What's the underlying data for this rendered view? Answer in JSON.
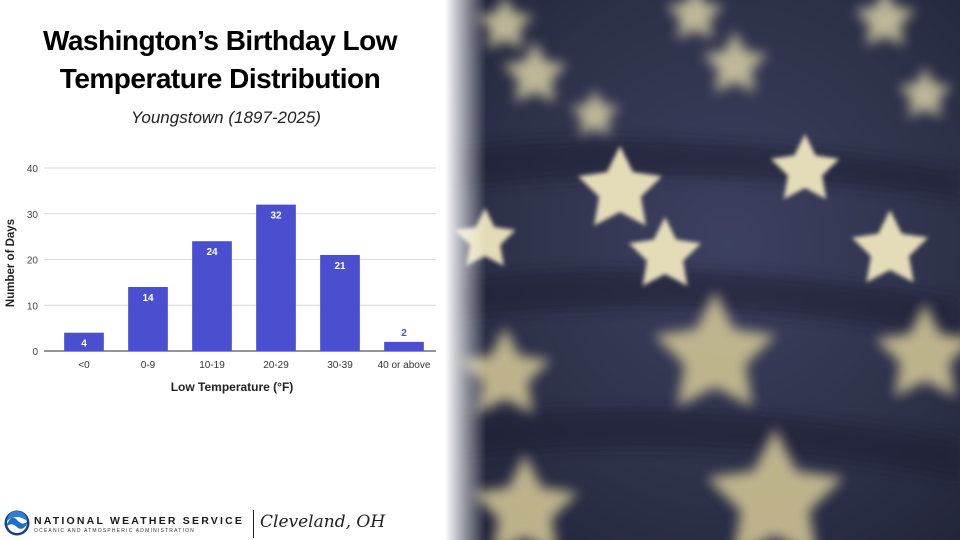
{
  "title": "Washington’s Birthday Low Temperature Distribution",
  "subtitle": "Youngstown (1897-2025)",
  "footer": {
    "agency": "NATIONAL WEATHER SERVICE",
    "agency_sub": "OCEANIC AND ATMOSPHERIC ADMINISTRATION",
    "office": "Cleveland, OH"
  },
  "colors": {
    "bar": "#4a4fcf",
    "grid": "#d9d9d9",
    "label_inside": "#ffffff",
    "label_outside": "#4a4fcf"
  },
  "chart_data": {
    "type": "bar",
    "categories": [
      "<0",
      "0-9",
      "10-19",
      "20-29",
      "30-39",
      "40 or above"
    ],
    "values": [
      4,
      14,
      24,
      32,
      21,
      2
    ],
    "data_labels": [
      "4",
      "14",
      "24",
      "32",
      "21",
      "2"
    ],
    "xlabel": "Low Temperature (°F)",
    "ylabel": "Number of Days",
    "ylim": [
      0,
      40
    ],
    "yticks": [
      0,
      10,
      20,
      30,
      40
    ],
    "grid": true,
    "legend": "none"
  }
}
